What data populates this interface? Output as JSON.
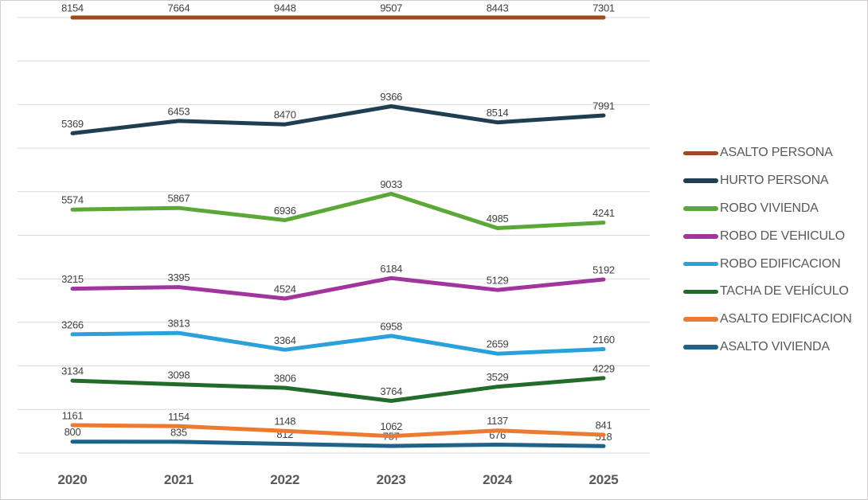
{
  "chart_data": {
    "type": "line",
    "stacking": "percent",
    "title": "",
    "xlabel": "",
    "ylabel": "",
    "categories": [
      "2020",
      "2021",
      "2022",
      "2023",
      "2024",
      "2025"
    ],
    "series": [
      {
        "name": "ASALTO PERSONA",
        "color": "#A04A1F",
        "values": [
          8154,
          7664,
          9448,
          9507,
          8443,
          7301
        ]
      },
      {
        "name": "HURTO PERSONA",
        "color": "#1F3E52",
        "values": [
          5369,
          6453,
          8470,
          9366,
          8514,
          7991
        ]
      },
      {
        "name": "ROBO VIVIENDA",
        "color": "#5BA838",
        "values": [
          5574,
          5867,
          6936,
          9033,
          4985,
          4241
        ]
      },
      {
        "name": "ROBO DE VEHICULO",
        "color": "#A2349D",
        "values": [
          3215,
          3395,
          4524,
          6184,
          5129,
          5192
        ]
      },
      {
        "name": "ROBO EDIFICACION",
        "color": "#2AA1DB",
        "values": [
          3266,
          3813,
          3364,
          6958,
          2659,
          2160
        ]
      },
      {
        "name": "TACHA DE VEHÍCULO",
        "color": "#226B2B",
        "values": [
          3134,
          3098,
          3806,
          3764,
          3529,
          4229
        ]
      },
      {
        "name": "ASALTO EDIFICACION",
        "color": "#EC7A31",
        "values": [
          1161,
          1154,
          1148,
          1062,
          1137,
          841
        ]
      },
      {
        "name": "ASALTO VIVIENDA",
        "color": "#1F6389",
        "values": [
          800,
          835,
          812,
          757,
          676,
          518
        ]
      }
    ],
    "stack_order": "last-series-at-bottom",
    "data_labels": "above",
    "legend_position": "right",
    "grid": true,
    "y_axis": {
      "min": 0,
      "max": 1,
      "gridline_interval": 0.1,
      "tick_labels_visible": false
    }
  },
  "style": {
    "background": "#FFFFFF",
    "border_color": "#D0CECE",
    "gridline_color": "#D9D9D9",
    "data_label_color": "#404040",
    "axis_label_color": "#595959",
    "legend_text_color": "#595959"
  }
}
